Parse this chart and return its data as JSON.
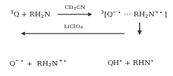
{
  "bg_color": "#ffffff",
  "text_color": "#1a1a1a",
  "arrow_color": "#333333",
  "top_left_text": "$^{3}$Q + RH$_{2}$N",
  "top_right_text": "$^{3}$[Q$^{-\\bullet}$ $\\cdots$ RH$_{2}$N$^{+\\bullet}$]",
  "top_arrow_label": "CD$_{3}$CN",
  "mid_arrow_label": "LiClO$_{4}$",
  "bot_left_text": "Q$^{-\\bullet}$ +  RH$_{2}$N$^{+\\bullet}$",
  "bot_right_text": "QH$^{\\bullet}$ + RHN$^{\\bullet}$",
  "figsize": [
    2.55,
    1.11
  ],
  "dpi": 100
}
